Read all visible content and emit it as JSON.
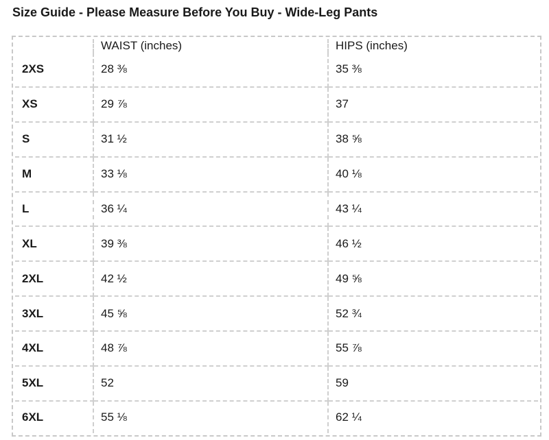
{
  "title": "Size Guide - Please Measure Before You Buy - Wide-Leg Pants",
  "table": {
    "headers": [
      "",
      "WAIST (inches)",
      "HIPS (inches)"
    ],
    "rows": [
      {
        "size": "2XS",
        "waist": "28 ⅜",
        "hips": "35 ⅜"
      },
      {
        "size": "XS",
        "waist": "29 ⅞",
        "hips": "37"
      },
      {
        "size": "S",
        "waist": "31 ½",
        "hips": "38 ⅝"
      },
      {
        "size": "M",
        "waist": "33 ⅛",
        "hips": "40 ⅛"
      },
      {
        "size": "L",
        "waist": "36 ¼",
        "hips": "43 ¼"
      },
      {
        "size": "XL",
        "waist": "39 ⅜",
        "hips": "46 ½"
      },
      {
        "size": "2XL",
        "waist": "42 ½",
        "hips": "49 ⅝"
      },
      {
        "size": "3XL",
        "waist": "45 ⅝",
        "hips": "52 ¾"
      },
      {
        "size": "4XL",
        "waist": "48 ⅞",
        "hips": "55 ⅞"
      },
      {
        "size": "5XL",
        "waist": "52",
        "hips": "59"
      },
      {
        "size": "6XL",
        "waist": "55 ⅛",
        "hips": "62 ¼"
      }
    ]
  }
}
